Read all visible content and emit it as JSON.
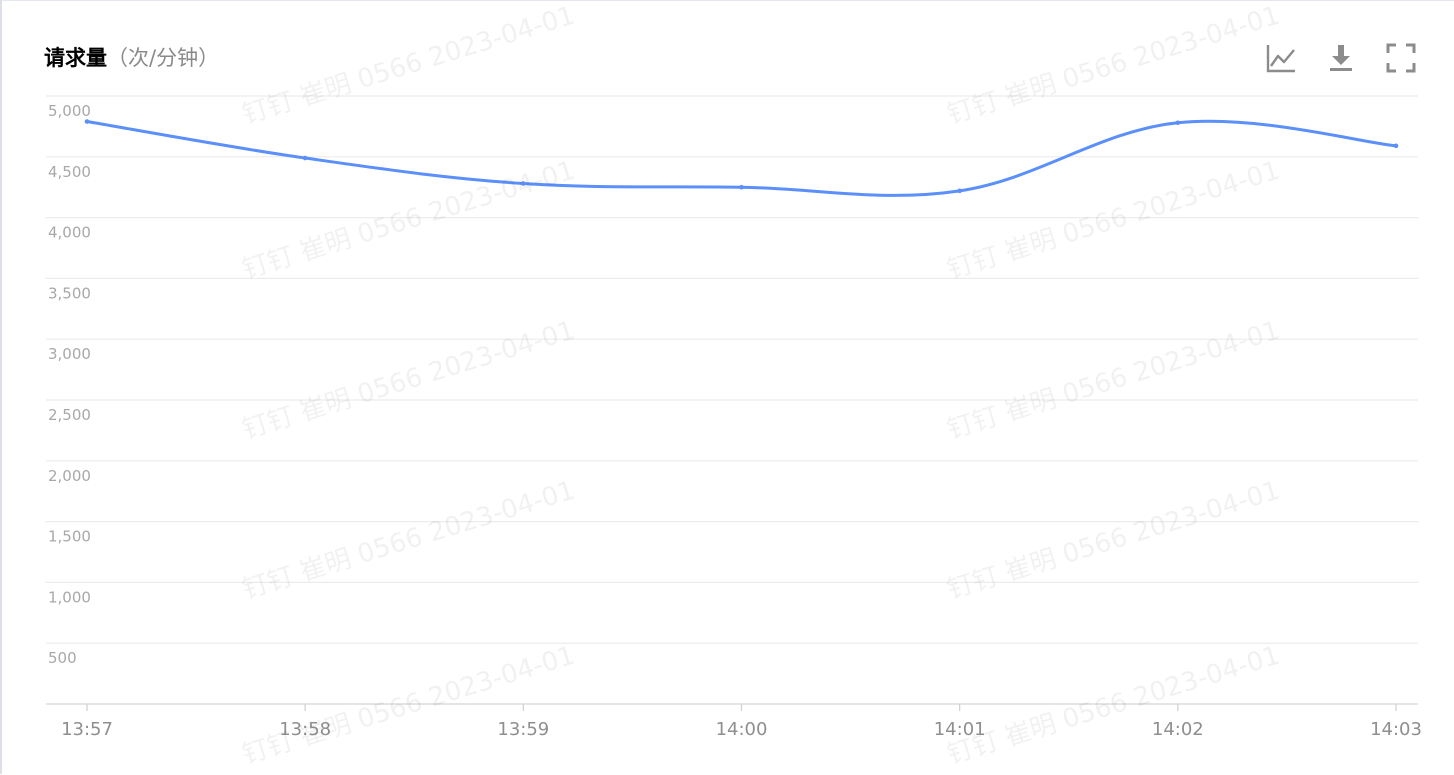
{
  "panel": {
    "title": "请求量",
    "unit": "（次/分钟）"
  },
  "toolbar": {
    "icons": [
      "line-chart-icon",
      "download-icon",
      "fullscreen-icon"
    ]
  },
  "watermark": {
    "text": "钉钉 崔明 0566 2023-04-01"
  },
  "chart_data": {
    "type": "line",
    "title": "",
    "xlabel": "",
    "ylabel": "",
    "x": [
      "13:57",
      "13:58",
      "13:59",
      "14:00",
      "14:01",
      "14:02",
      "14:03"
    ],
    "ylim": [
      0,
      5000
    ],
    "yticks": [
      "500",
      "1,000",
      "1,500",
      "2,000",
      "2,500",
      "3,000",
      "3,500",
      "4,000",
      "4,500",
      "5,000"
    ],
    "grid": true,
    "smooth": true,
    "series": [
      {
        "values": [
          4790,
          4490,
          4280,
          4250,
          4220,
          4780,
          4590
        ],
        "color": "#5b8ff9"
      }
    ]
  }
}
